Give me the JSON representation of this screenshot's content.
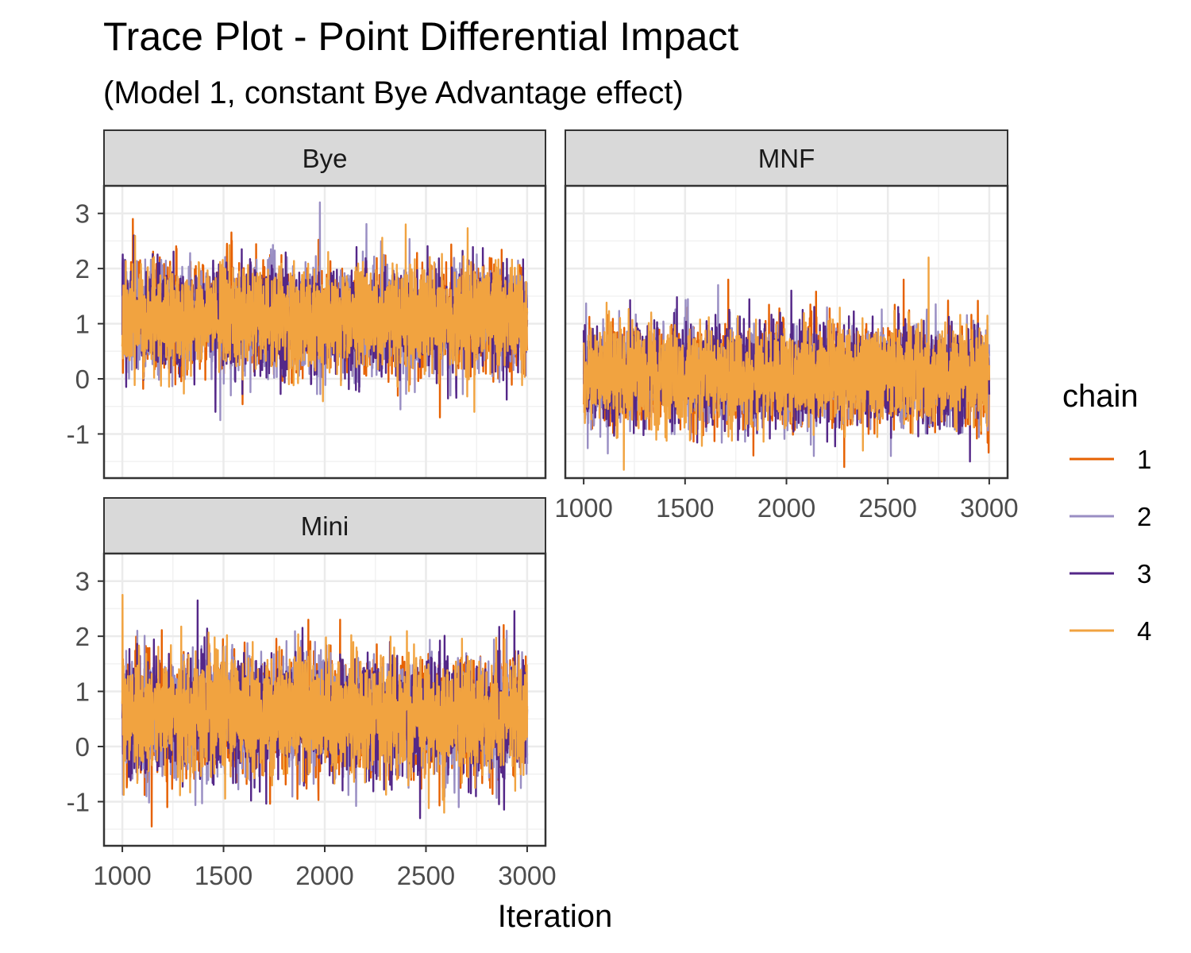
{
  "chart_data": {
    "type": "line",
    "title": "Trace Plot - Point Differential Impact",
    "subtitle": "(Model 1, constant Bye Advantage effect)",
    "xlabel": "Iteration",
    "ylabel": "",
    "xlim": [
      1000,
      3000
    ],
    "ylim": [
      -1.8,
      3.5
    ],
    "x_ticks": [
      1000,
      1500,
      2000,
      2500,
      3000
    ],
    "y_ticks": [
      -1,
      0,
      1,
      2,
      3
    ],
    "grid": true,
    "legend": {
      "title": "chain",
      "placement": "right",
      "entries": [
        {
          "label": "1",
          "color": "#E66101"
        },
        {
          "label": "2",
          "color": "#998EC3"
        },
        {
          "label": "3",
          "color": "#542788"
        },
        {
          "label": "4",
          "color": "#F1A340"
        }
      ]
    },
    "panels": [
      {
        "label": "Bye",
        "chains": [
          {
            "name": "1",
            "mean": 1.1,
            "sd": 0.45,
            "min": -0.7,
            "max": 2.9,
            "seed": 11
          },
          {
            "name": "2",
            "mean": 1.1,
            "sd": 0.45,
            "min": -0.75,
            "max": 3.2,
            "seed": 12
          },
          {
            "name": "3",
            "mean": 1.1,
            "sd": 0.45,
            "min": -0.6,
            "max": 2.6,
            "seed": 13
          },
          {
            "name": "4",
            "mean": 1.1,
            "sd": 0.45,
            "min": -0.6,
            "max": 2.8,
            "seed": 14
          }
        ]
      },
      {
        "label": "MNF",
        "chains": [
          {
            "name": "1",
            "mean": 0.05,
            "sd": 0.42,
            "min": -1.6,
            "max": 1.8,
            "seed": 21
          },
          {
            "name": "2",
            "mean": 0.05,
            "sd": 0.42,
            "min": -1.4,
            "max": 1.7,
            "seed": 22
          },
          {
            "name": "3",
            "mean": 0.05,
            "sd": 0.42,
            "min": -1.5,
            "max": 1.6,
            "seed": 23
          },
          {
            "name": "4",
            "mean": 0.05,
            "sd": 0.42,
            "min": -1.65,
            "max": 2.2,
            "seed": 24
          }
        ]
      },
      {
        "label": "Mini",
        "chains": [
          {
            "name": "1",
            "mean": 0.55,
            "sd": 0.5,
            "min": -1.45,
            "max": 2.3,
            "seed": 31
          },
          {
            "name": "2",
            "mean": 0.55,
            "sd": 0.5,
            "min": -1.1,
            "max": 2.1,
            "seed": 32
          },
          {
            "name": "3",
            "mean": 0.55,
            "sd": 0.5,
            "min": -1.3,
            "max": 2.65,
            "seed": 33
          },
          {
            "name": "4",
            "mean": 0.55,
            "sd": 0.5,
            "min": -1.2,
            "max": 2.75,
            "seed": 34
          }
        ]
      }
    ]
  }
}
